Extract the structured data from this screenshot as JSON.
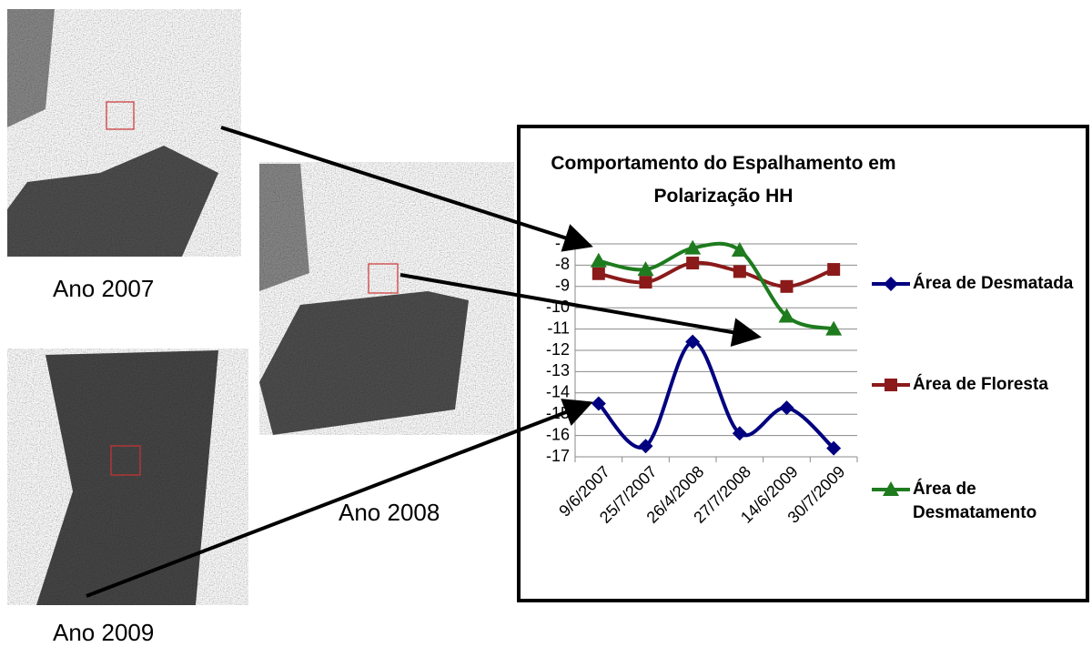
{
  "images": [
    {
      "label": "Ano 2007"
    },
    {
      "label": "Ano 2008"
    },
    {
      "label": "Ano 2009"
    }
  ],
  "chart_data": {
    "type": "line",
    "title": "Comportamento do Espalhamento em Polarização HH",
    "categories": [
      "9/6/2007",
      "25/7/2007",
      "26/4/2008",
      "27/7/2008",
      "14/6/2009",
      "30/7/2009"
    ],
    "series": [
      {
        "name": "Área de Desmatada",
        "color": "#000080",
        "marker": "diamond",
        "values": [
          -14.5,
          -16.5,
          -11.6,
          -15.9,
          -14.7,
          -16.6
        ]
      },
      {
        "name": "Área de Floresta",
        "color": "#8b1a1a",
        "marker": "square",
        "values": [
          -8.4,
          -8.8,
          -7.9,
          -8.3,
          -9.0,
          -8.2
        ]
      },
      {
        "name": "Área de Desmatamento",
        "color": "#1e7b1e",
        "marker": "triangle",
        "values": [
          -7.8,
          -8.2,
          -7.2,
          -7.3,
          -10.4,
          -11.0
        ]
      }
    ],
    "ylim": [
      -17,
      -7
    ],
    "yticks": [
      -17,
      -16,
      -15,
      -14,
      -13,
      -12,
      -11,
      -10,
      -9,
      -8,
      -7
    ],
    "grid": true,
    "smooth": true,
    "legend": "right"
  }
}
